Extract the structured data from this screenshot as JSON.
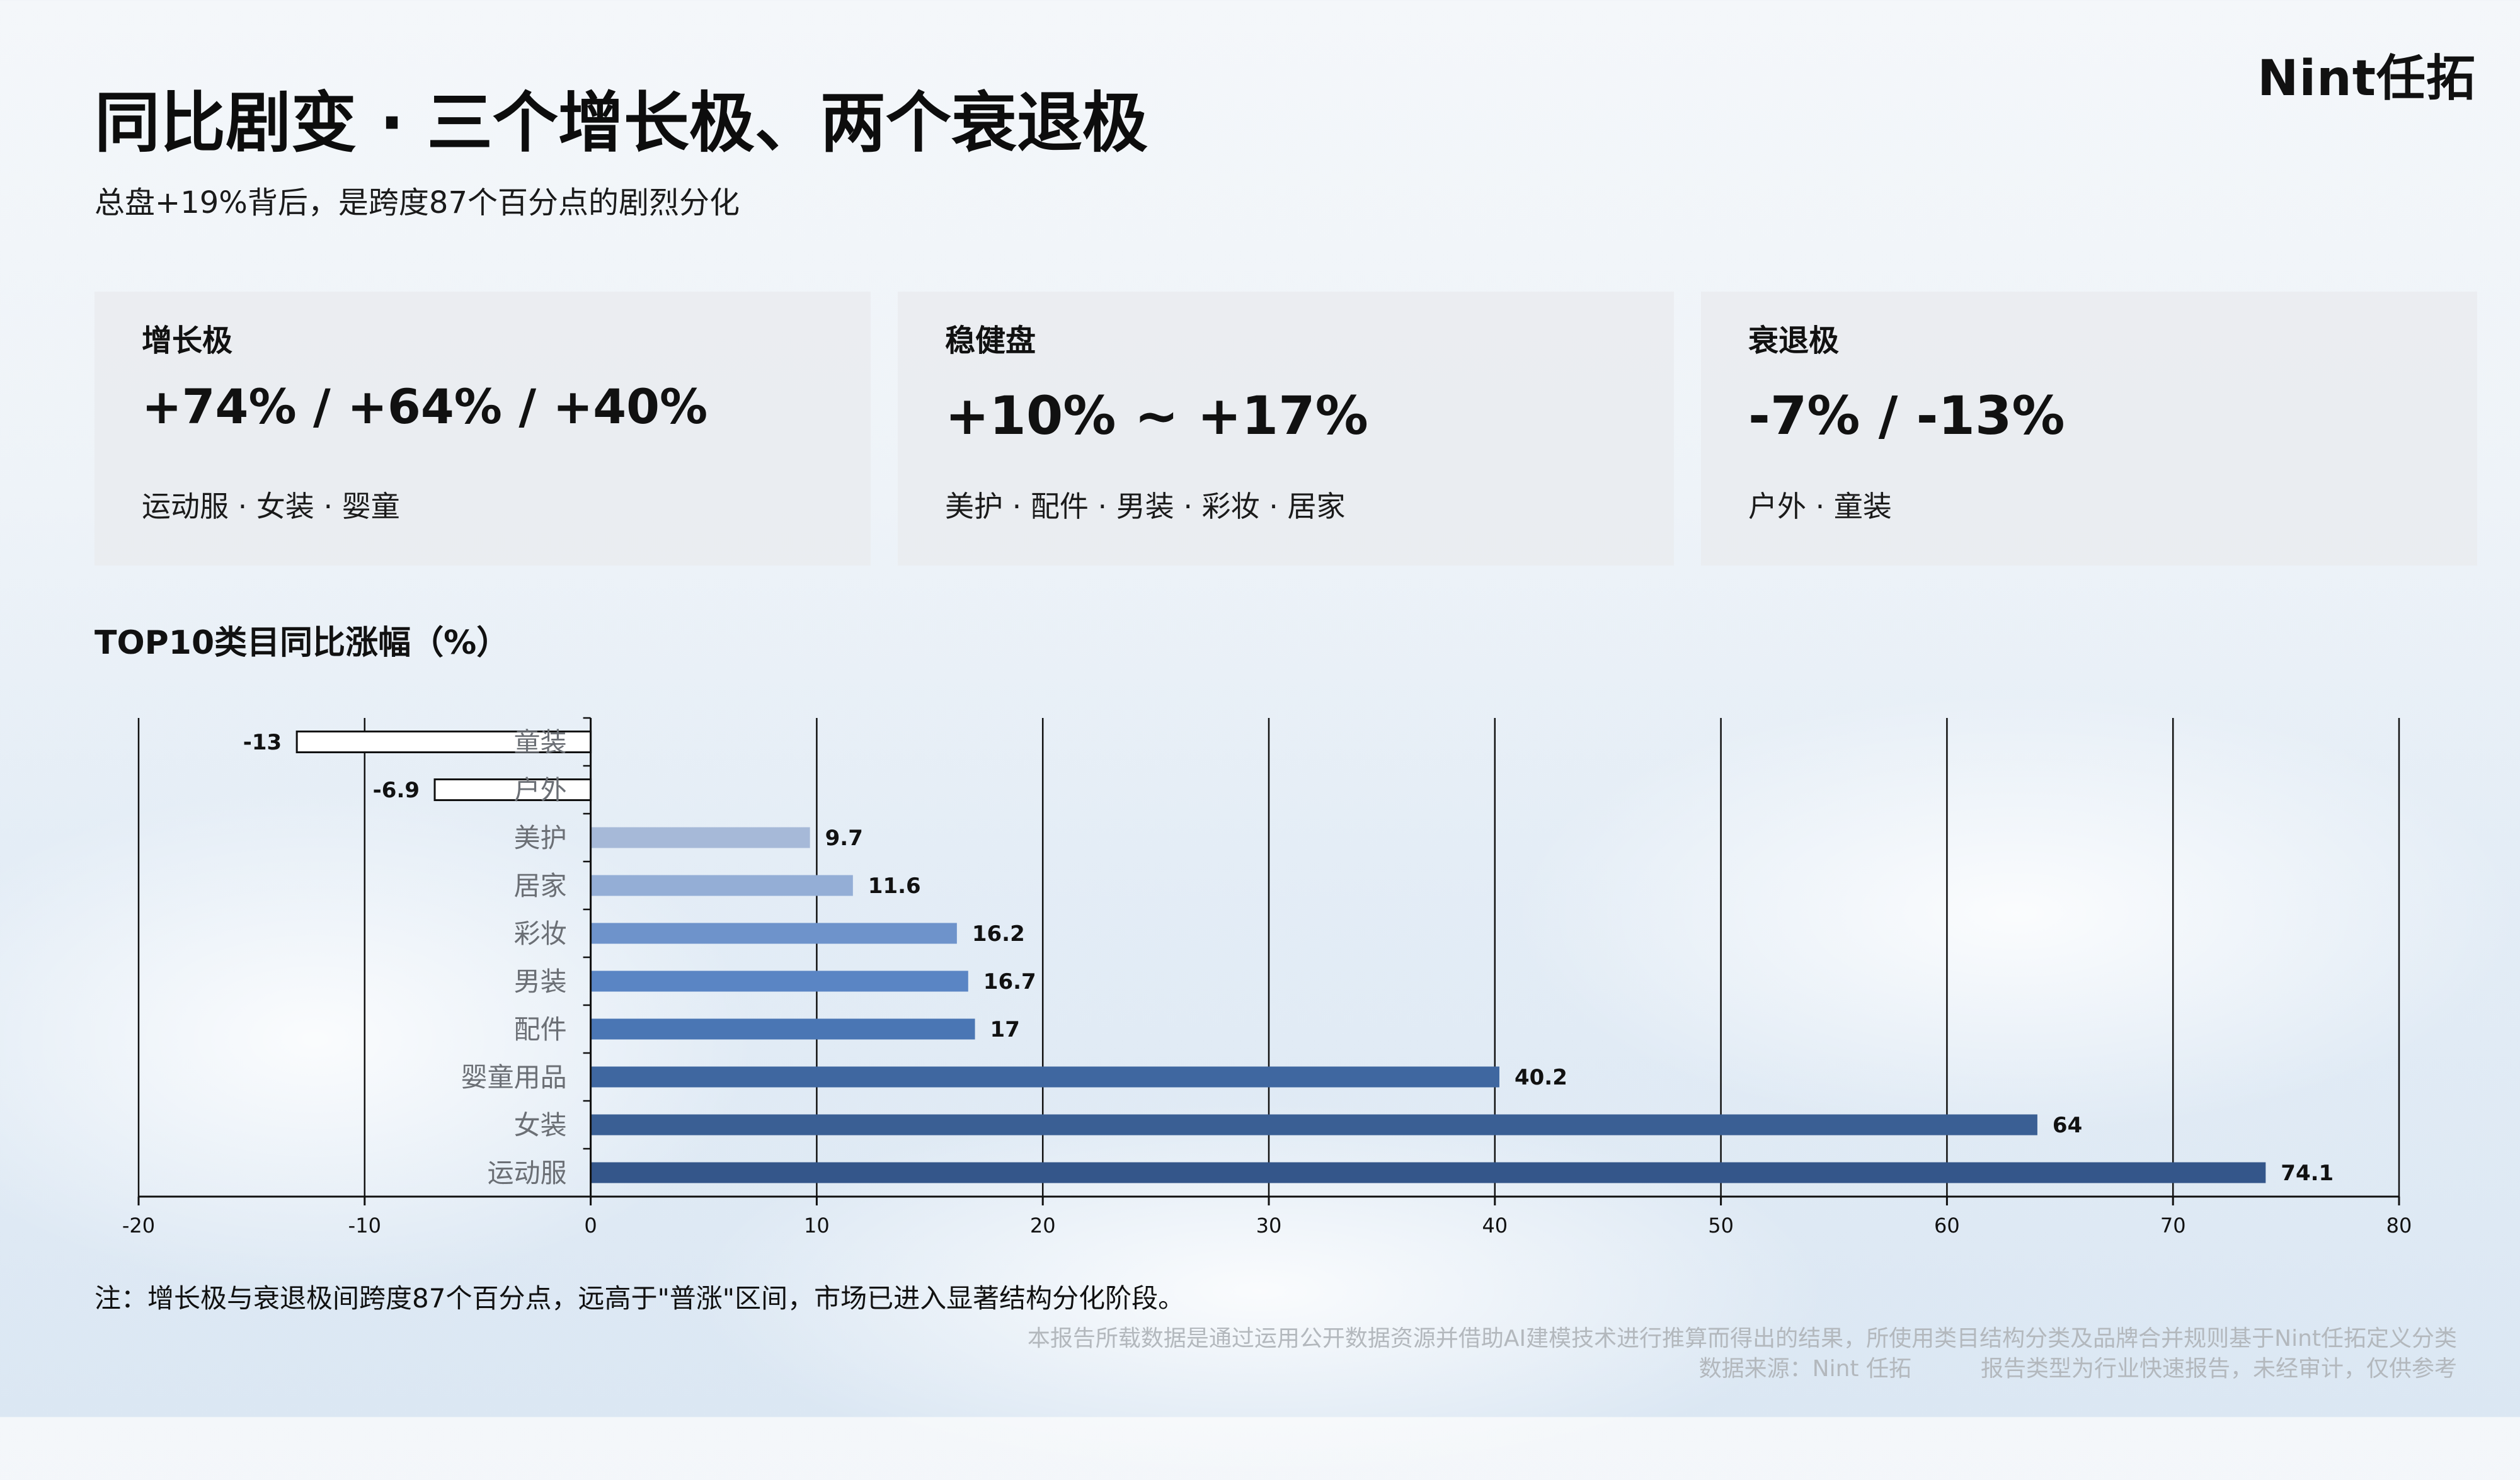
{
  "logo": "Nint任拓",
  "title": "同比剧变 · 三个增长极、两个衰退极",
  "subtitle": "总盘+19%背后，是跨度87个百分点的剧烈分化",
  "cards": [
    {
      "label": "增长极",
      "value": "+74% / +64% / +40%",
      "items": "运动服 · 女装 · 婴童"
    },
    {
      "label": "稳健盘",
      "value": "+10% ~ +17%",
      "items": "美护 · 配件 · 男装 · 彩妆 · 居家"
    },
    {
      "label": "衰退极",
      "value": "-7% / -13%",
      "items": "户外 · 童装"
    }
  ],
  "chart_title": "TOP10类目同比涨幅（%）",
  "chart_data": {
    "type": "bar",
    "orientation": "horizontal",
    "categories": [
      "童装",
      "户外",
      "美护",
      "居家",
      "彩妆",
      "男装",
      "配件",
      "婴童用品",
      "女装",
      "运动服"
    ],
    "values": [
      -13,
      -6.9,
      9.7,
      11.6,
      16.2,
      16.7,
      17,
      40.2,
      64,
      74.1
    ],
    "value_labels": [
      "-13",
      "-6.9",
      "9.7",
      "11.6",
      "16.2",
      "16.7",
      "17",
      "40.2",
      "64",
      "74.1"
    ],
    "bar_colors": [
      "#ffffff",
      "#ffffff",
      "#a6b9d8",
      "#94aed6",
      "#6e93cb",
      "#5a85c4",
      "#4a76b4",
      "#3f67a0",
      "#3a5f94",
      "#34568a"
    ],
    "xlim": [
      -20,
      80
    ],
    "x_ticks": [
      "-20",
      "-10",
      "0",
      "10",
      "20",
      "30",
      "40",
      "50",
      "60",
      "70",
      "80"
    ],
    "grid": true
  },
  "footnote": "注：增长极与衰退极间跨度87个百分点，远高于\"普涨\"区间，市场已进入显著结构分化阶段。",
  "disclaimer": {
    "line1": "本报告所载数据是通过运用公开数据资源并借助AI建模技术进行推算而得出的结果，所使用类目结构分类及品牌合并规则基于Nint任拓定义分类",
    "source": "数据来源：Nint 任拓",
    "type": "报告类型为行业快速报告，未经审计，仅供参考"
  }
}
